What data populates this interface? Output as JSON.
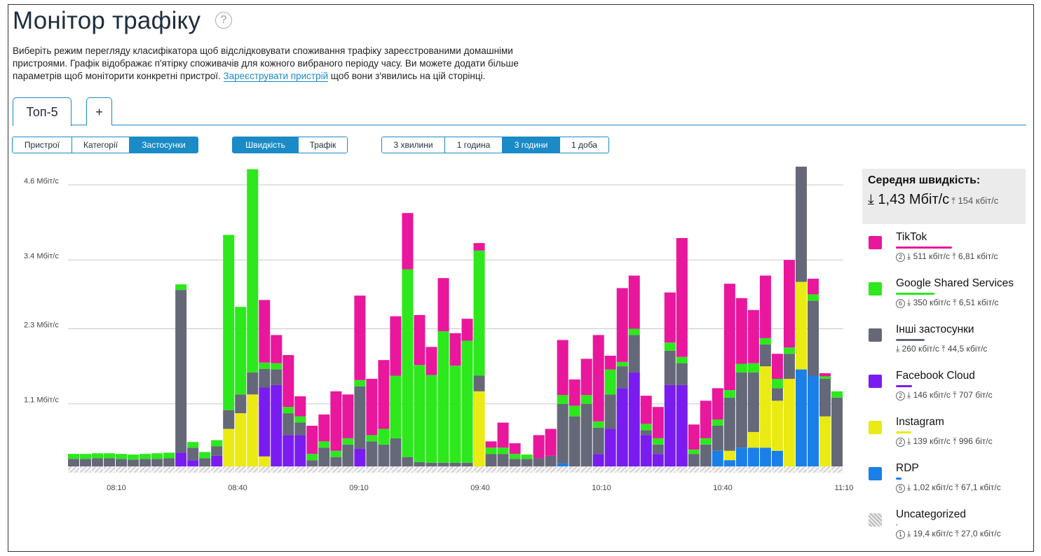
{
  "page": {
    "title": "Монітор трафіку",
    "help_icon": "?",
    "description_part1": "Виберіть режим перегляду класифікатора щоб відслідковувати споживання трафіку зареєстрованими домашніми пристроями. Графік відображає п'ятірку споживачів для кожного вибраного періоду часу. Ви можете додати більше параметрів щоб моніторити конкретні пристрої. ",
    "description_link": "Зареєструвати пристрій",
    "description_part2": " щоб вони з'явились на цій сторінці."
  },
  "tabs": [
    {
      "label": "Топ-5",
      "active": true
    },
    {
      "label": "+",
      "active": false
    }
  ],
  "filters": {
    "mode": [
      {
        "label": "Пристрої",
        "active": false
      },
      {
        "label": "Категорії",
        "active": false
      },
      {
        "label": "Застосунки",
        "active": true
      }
    ],
    "metric": [
      {
        "label": "Швидкість",
        "active": true
      },
      {
        "label": "Трафік",
        "active": false
      }
    ],
    "period": [
      {
        "label": "3 хвилини",
        "active": false
      },
      {
        "label": "1 година",
        "active": false
      },
      {
        "label": "3 години",
        "active": true
      },
      {
        "label": "1 доба",
        "active": false
      }
    ]
  },
  "chart_data": {
    "type": "bar",
    "stacked": true,
    "y_ticks": [
      {
        "label": "1.1 Мбіт/с",
        "value": 1.1
      },
      {
        "label": "2.3 Мбіт/с",
        "value": 2.3
      },
      {
        "label": "3.4 Мбіт/с",
        "value": 3.4
      },
      {
        "label": "4.6 Мбіт/с",
        "value": 4.6
      }
    ],
    "x_ticks": [
      "08:10",
      "08:40",
      "09:10",
      "09:40",
      "10:10",
      "10:40",
      "11:10"
    ],
    "ylim": [
      0,
      4.6
    ],
    "grid": true,
    "series_order": [
      "Uncategorized",
      "RDP",
      "Instagram",
      "Facebook Cloud",
      "Інші застосунки",
      "Google Shared Services",
      "TikTok"
    ],
    "colors": {
      "TikTok": "#e8179c",
      "Google Shared Services": "#2ce81c",
      "Інші застосунки": "#646878",
      "Facebook Cloud": "#7a1cf0",
      "Instagram": "#eaea14",
      "RDP": "#1a7fe8",
      "Uncategorized": "#c8c8c8"
    },
    "bars": [
      {
        "Uncategorized": 0.1,
        "Інші застосунки": 0.12,
        "Google Shared Services": 0.08
      },
      {
        "Uncategorized": 0.1,
        "Інші застосунки": 0.12,
        "Google Shared Services": 0.08
      },
      {
        "Uncategorized": 0.1,
        "Інші застосунки": 0.13,
        "Google Shared Services": 0.08
      },
      {
        "Uncategorized": 0.1,
        "Інші застосунки": 0.13,
        "Google Shared Services": 0.08
      },
      {
        "Uncategorized": 0.1,
        "Інші застосунки": 0.12,
        "Google Shared Services": 0.08
      },
      {
        "Uncategorized": 0.1,
        "Інші застосунки": 0.11,
        "Google Shared Services": 0.08
      },
      {
        "Uncategorized": 0.1,
        "Інші застосунки": 0.12,
        "Google Shared Services": 0.08
      },
      {
        "Uncategorized": 0.1,
        "Інші застосунки": 0.12,
        "Google Shared Services": 0.09
      },
      {
        "Uncategorized": 0.1,
        "Інші застосунки": 0.13,
        "Google Shared Services": 0.09
      },
      {
        "Uncategorized": 0.1,
        "Facebook Cloud": 0.22,
        "Інші застосунки": 2.6,
        "Google Shared Services": 0.09
      },
      {
        "Uncategorized": 0.1,
        "Facebook Cloud": 0.1,
        "Інші застосунки": 0.2,
        "Google Shared Services": 0.09
      },
      {
        "Uncategorized": 0.1,
        "Інші застосунки": 0.13,
        "Google Shared Services": 0.1
      },
      {
        "Uncategorized": 0.1,
        "Facebook Cloud": 0.17,
        "Інші застосунки": 0.15,
        "Google Shared Services": 0.1
      },
      {
        "Uncategorized": 0.1,
        "Instagram": 0.6,
        "Інші застосунки": 0.3,
        "Google Shared Services": 2.8
      },
      {
        "Uncategorized": 0.1,
        "Instagram": 0.85,
        "Інші застосунки": 0.3,
        "Google Shared Services": 1.4
      },
      {
        "Uncategorized": 0.1,
        "Instagram": 1.15,
        "Інші застосунки": 0.35,
        "Google Shared Services": 3.25
      },
      {
        "Uncategorized": 0.1,
        "Instagram": 0.16,
        "Facebook Cloud": 1.1,
        "Інші застосунки": 0.3,
        "Google Shared Services": 0.1,
        "TikTok": 1.0
      },
      {
        "Uncategorized": 0.1,
        "Facebook Cloud": 1.3,
        "Інші застосунки": 0.25,
        "Google Shared Services": 0.1,
        "TikTok": 0.45
      },
      {
        "Uncategorized": 0.1,
        "Facebook Cloud": 0.5,
        "Інші застосунки": 0.35,
        "Google Shared Services": 0.1,
        "TikTok": 0.83
      },
      {
        "Uncategorized": 0.1,
        "Facebook Cloud": 0.5,
        "Інші застосунки": 0.2,
        "Google Shared Services": 0.1,
        "TikTok": 0.32
      },
      {
        "Uncategorized": 0.1,
        "Інші застосунки": 0.1,
        "Google Shared Services": 0.1,
        "TikTok": 0.45
      },
      {
        "Uncategorized": 0.1,
        "Інші застосунки": 0.3,
        "Google Shared Services": 0.1,
        "TikTok": 0.43
      },
      {
        "Uncategorized": 0.1,
        "Інші застосунки": 0.15,
        "Google Shared Services": 0.1,
        "TikTok": 0.95
      },
      {
        "Uncategorized": 0.1,
        "Інші застосунки": 0.35,
        "Google Shared Services": 0.1,
        "TikTok": 0.7
      },
      {
        "Uncategorized": 0.1,
        "Facebook Cloud": 0.28,
        "Інші застосунки": 1.0,
        "Google Shared Services": 0.1,
        "TikTok": 1.35
      },
      {
        "Uncategorized": 0.1,
        "Інші застосунки": 0.4,
        "Google Shared Services": 0.1,
        "TikTok": 0.9
      },
      {
        "Uncategorized": 0.1,
        "Інші застосунки": 0.35,
        "Google Shared Services": 0.25,
        "TikTok": 1.1
      },
      {
        "Uncategorized": 0.1,
        "Інші застосунки": 0.45,
        "Google Shared Services": 1.0,
        "TikTok": 0.95
      },
      {
        "Uncategorized": 0.1,
        "Інші застосунки": 0.15,
        "Google Shared Services": 3.0,
        "TikTok": 0.9
      },
      {
        "Uncategorized": 0.1,
        "Інші застосунки": 0.07,
        "Google Shared Services": 1.55,
        "TikTok": 0.8
      },
      {
        "Uncategorized": 0.1,
        "Інші застосунки": 0.06,
        "Google Shared Services": 1.4,
        "TikTok": 0.45
      },
      {
        "Uncategorized": 0.1,
        "Інші застосунки": 0.06,
        "Google Shared Services": 2.1,
        "TikTok": 0.85
      },
      {
        "Uncategorized": 0.1,
        "Інші застосунки": 0.06,
        "Google Shared Services": 1.55,
        "TikTok": 0.52
      },
      {
        "Uncategorized": 0.1,
        "Інші застосунки": 0.06,
        "Google Shared Services": 1.95,
        "TikTok": 0.35
      },
      {
        "Uncategorized": 0.1,
        "Instagram": 1.2,
        "Інші застосунки": 0.25,
        "Google Shared Services": 2.0,
        "TikTok": 0.12
      },
      {
        "Uncategorized": 0.1,
        "Інші застосунки": 0.2,
        "Google Shared Services": 0.1,
        "TikTok": 0.1
      },
      {
        "Uncategorized": 0.1,
        "Інші застосунки": 0.2,
        "Google Shared Services": 0.1,
        "TikTok": 0.4
      },
      {
        "Uncategorized": 0.1,
        "Інші застосунки": 0.12,
        "Google Shared Services": 0.08,
        "TikTok": 0.17
      },
      {
        "Uncategorized": 0.1,
        "Інші застосунки": 0.12,
        "Google Shared Services": 0.07
      },
      {
        "Uncategorized": 0.1,
        "Інші застосунки": 0.13,
        "TikTok": 0.37
      },
      {
        "Uncategorized": 0.1,
        "Інші застосунки": 0.17,
        "TikTok": 0.43
      },
      {
        "Uncategorized": 0.1,
        "RDP": 0.05,
        "Інші застосунки": 0.95,
        "Google Shared Services": 0.14,
        "TikTok": 0.88
      },
      {
        "Uncategorized": 0.1,
        "RDP": 0.0,
        "Інші застосунки": 0.8,
        "Google Shared Services": 0.17,
        "TikTok": 0.42
      },
      {
        "Uncategorized": 0.1,
        "RDP": 0.0,
        "Інші застосунки": 1.0,
        "Google Shared Services": 0.14,
        "TikTok": 0.58
      },
      {
        "Uncategorized": 0.1,
        "RDP": 0.0,
        "Facebook Cloud": 0.2,
        "Інші застосунки": 0.42,
        "Google Shared Services": 0.1,
        "TikTok": 1.38
      },
      {
        "Uncategorized": 0.1,
        "RDP": 0.0,
        "Facebook Cloud": 0.6,
        "Інші застосунки": 0.55,
        "Google Shared Services": 0.4,
        "TikTok": 0.22
      },
      {
        "Uncategorized": 0.1,
        "RDP": 0.0,
        "Facebook Cloud": 1.25,
        "Інші застосунки": 0.35,
        "Google Shared Services": 0.07,
        "TikTok": 1.18
      },
      {
        "Uncategorized": 0.1,
        "RDP": 0.0,
        "Facebook Cloud": 1.5,
        "Інші застосунки": 0.6,
        "Google Shared Services": 0.1,
        "TikTok": 0.85
      },
      {
        "Uncategorized": 0.1,
        "RDP": 0.0,
        "Facebook Cloud": 0.5,
        "Інші застосунки": 0.08,
        "Google Shared Services": 0.1,
        "TikTok": 0.45
      },
      {
        "Uncategorized": 0.1,
        "RDP": 0.0,
        "Facebook Cloud": 0.2,
        "Інші застосунки": 0.15,
        "Google Shared Services": 0.1,
        "TikTok": 0.5
      },
      {
        "Uncategorized": 0.1,
        "RDP": 0.0,
        "Facebook Cloud": 1.3,
        "Інші застосунки": 0.55,
        "Google Shared Services": 0.13,
        "TikTok": 0.8
      },
      {
        "Uncategorized": 0.1,
        "RDP": 0.0,
        "Facebook Cloud": 1.3,
        "Інші застосунки": 0.35,
        "Google Shared Services": 0.1,
        "TikTok": 1.9
      },
      {
        "Uncategorized": 0.1,
        "RDP": 0.0,
        "Інші застосунки": 0.2,
        "Google Shared Services": 0.07,
        "TikTok": 0.4
      },
      {
        "Uncategorized": 0.1,
        "RDP": 0.0,
        "Інші застосунки": 0.35,
        "Google Shared Services": 0.1,
        "TikTok": 0.6
      },
      {
        "Uncategorized": 0.1,
        "RDP": 0.25,
        "Інші застосунки": 0.4,
        "Google Shared Services": 0.1,
        "TikTok": 0.5
      },
      {
        "Uncategorized": 0.1,
        "RDP": 0.1,
        "Instagram": 0.15,
        "Інші застосунки": 0.85,
        "Google Shared Services": 0.12,
        "TikTok": 1.7
      },
      {
        "Uncategorized": 0.1,
        "RDP": 0.3,
        "Instagram": 0.0,
        "Інші застосунки": 1.2,
        "Google Shared Services": 0.14,
        "TikTok": 1.05
      },
      {
        "Uncategorized": 0.1,
        "RDP": 0.3,
        "Instagram": 0.25,
        "Інші застосунки": 0.95,
        "Google Shared Services": 0.15,
        "TikTok": 0.85
      },
      {
        "Uncategorized": 0.1,
        "RDP": 0.3,
        "Instagram": 1.3,
        "Інші застосунки": 0.35,
        "Google Shared Services": 0.1,
        "TikTok": 1.0
      },
      {
        "Uncategorized": 0.1,
        "RDP": 0.25,
        "Instagram": 0.8,
        "Інші застосунки": 0.2,
        "Google Shared Services": 0.15,
        "TikTok": 0.4
      },
      {
        "Uncategorized": 0.1,
        "RDP": 0.0,
        "Instagram": 1.4,
        "Інші застосунки": 0.4,
        "Google Shared Services": 0.1,
        "TikTok": 1.4
      },
      {
        "Uncategorized": 0.1,
        "RDP": 1.55,
        "Instagram": 1.4,
        "Інші застосунки": 2.0,
        "Google Shared Services": 0.1,
        "TikTok": 0.75
      },
      {
        "Uncategorized": 0.1,
        "RDP": 1.45,
        "Інші застосунки": 1.2,
        "Google Shared Services": 0.1,
        "TikTok": 0.25
      },
      {
        "Uncategorized": 0.1,
        "RDP": 0.0,
        "Instagram": 0.8,
        "Інші застосунки": 0.6,
        "Google Shared Services": 0.04,
        "TikTok": 0.05
      },
      {
        "Uncategorized": 0.1,
        "RDP": 0.0,
        "Instagram": 0.0,
        "Інші застосунки": 1.1,
        "Google Shared Services": 0.1
      }
    ]
  },
  "legend": {
    "avg_title": "Середня швидкість:",
    "avg_down": "1,43 Мбіт/с",
    "avg_up": "154 кбіт/с",
    "items": [
      {
        "name": "TikTok",
        "color": "#e8179c",
        "bar_fraction": 1.0,
        "badge": "2",
        "down": "511 кбіт/с",
        "up": "6,81 кбіт/с"
      },
      {
        "name": "Google Shared Services",
        "color": "#2ce81c",
        "bar_fraction": 0.69,
        "badge": "6",
        "down": "350 кбіт/с",
        "up": "6,51 кбіт/с"
      },
      {
        "name": "Інші застосунки",
        "color": "#646878",
        "bar_fraction": 0.51,
        "badge": "",
        "down": "260 кбіт/с",
        "up": "44,5 кбіт/с"
      },
      {
        "name": "Facebook Cloud",
        "color": "#7a1cf0",
        "bar_fraction": 0.29,
        "badge": "2",
        "down": "146 кбіт/с",
        "up": "707 біт/с"
      },
      {
        "name": "Instagram",
        "color": "#eaea14",
        "bar_fraction": 0.27,
        "badge": "2",
        "down": "139 кбіт/с",
        "up": "996 біт/с"
      },
      {
        "name": "RDP",
        "color": "#1a7fe8",
        "bar_fraction": 0.1,
        "badge": "5",
        "down": "1,02 кбіт/с",
        "up": "67,1 кбіт/с"
      },
      {
        "name": "Uncategorized",
        "color": "#c8c8c8",
        "bar_fraction": 0.04,
        "badge": "1",
        "down": "19,4 кбіт/с",
        "up": "27,0 кбіт/с"
      }
    ]
  }
}
